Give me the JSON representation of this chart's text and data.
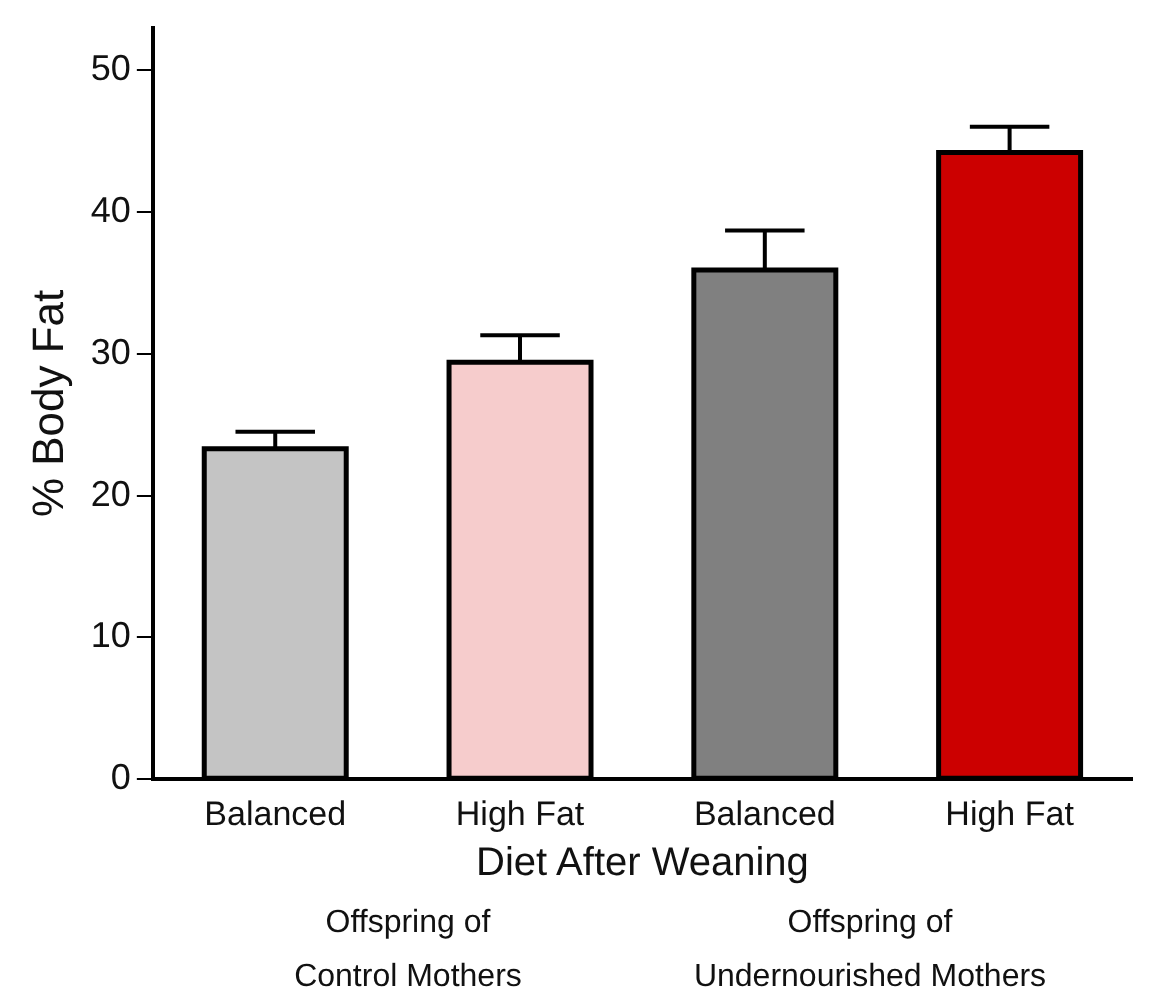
{
  "chart_data": {
    "type": "bar",
    "ylabel": "% Body Fat",
    "xlabel": "Diet After Weaning",
    "categories": [
      "Balanced",
      "High Fat",
      "Balanced",
      "High Fat"
    ],
    "values": [
      23.3,
      29.4,
      35.9,
      44.2
    ],
    "errors": [
      [
        23.3,
        24.5
      ],
      [
        29.4,
        31.3
      ],
      [
        35.9,
        38.7
      ],
      [
        44.2,
        46.0
      ]
    ],
    "colors": [
      "#c4c4c4",
      "#f6cccc",
      "#808080",
      "#cc0000"
    ],
    "ylim": [
      0,
      53
    ],
    "yticks": [
      0,
      10,
      20,
      30,
      40,
      50
    ],
    "grid": false,
    "legend": false,
    "annotations": [
      "Offspring of Control Mothers",
      "Offspring of Undernourished Mothers"
    ]
  }
}
